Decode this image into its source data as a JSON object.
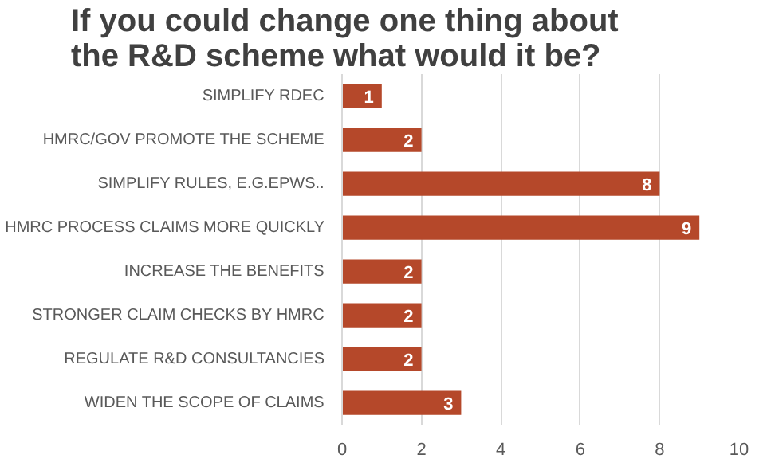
{
  "chart_data": {
    "type": "bar",
    "orientation": "horizontal",
    "title": "If you could change one thing about the R&D scheme what would it be?",
    "categories": [
      "SIMPLIFY RDEC",
      "HMRC/GOV PROMOTE THE SCHEME",
      "SIMPLIFY RULES, E.G.EPWS..",
      "HMRC PROCESS CLAIMS MORE QUICKLY",
      "INCREASE THE BENEFITS",
      "STRONGER CLAIM CHECKS BY HMRC",
      "REGULATE R&D CONSULTANCIES",
      "WIDEN THE SCOPE OF CLAIMS"
    ],
    "values": [
      1,
      2,
      8,
      9,
      2,
      2,
      2,
      3
    ],
    "color": "#b5482a",
    "xlim": [
      0,
      10
    ],
    "xticks": [
      0,
      2,
      4,
      6,
      8,
      10
    ],
    "grid": "x",
    "data_labels": true
  }
}
